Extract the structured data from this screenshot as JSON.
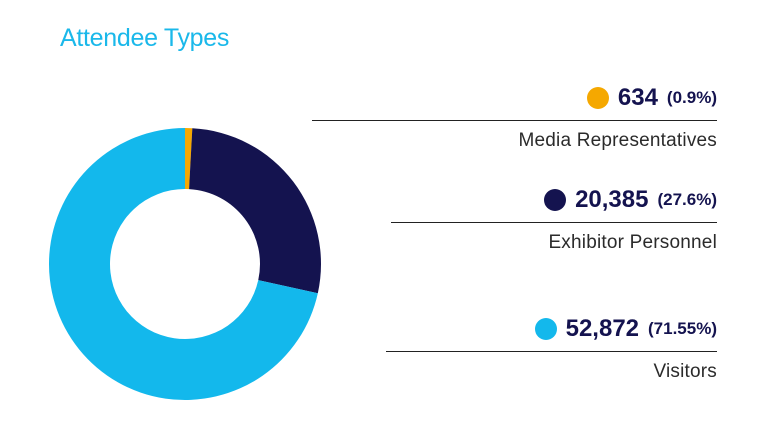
{
  "title": "Attendee Types",
  "chart_data": {
    "type": "pie",
    "title": "Attendee Types",
    "slices": [
      {
        "name": "Media Representatives",
        "value": 634,
        "value_label": "634",
        "percent_label": "(0.9%)",
        "color": "#f5a800"
      },
      {
        "name": "Exhibitor Personnel",
        "value": 20385,
        "value_label": "20,385",
        "percent_label": "(27.6%)",
        "color": "#14134f"
      },
      {
        "name": "Visitors",
        "value": 52872,
        "value_label": "52,872",
        "percent_label": "(71.55%)",
        "color": "#13b8ec"
      }
    ]
  }
}
